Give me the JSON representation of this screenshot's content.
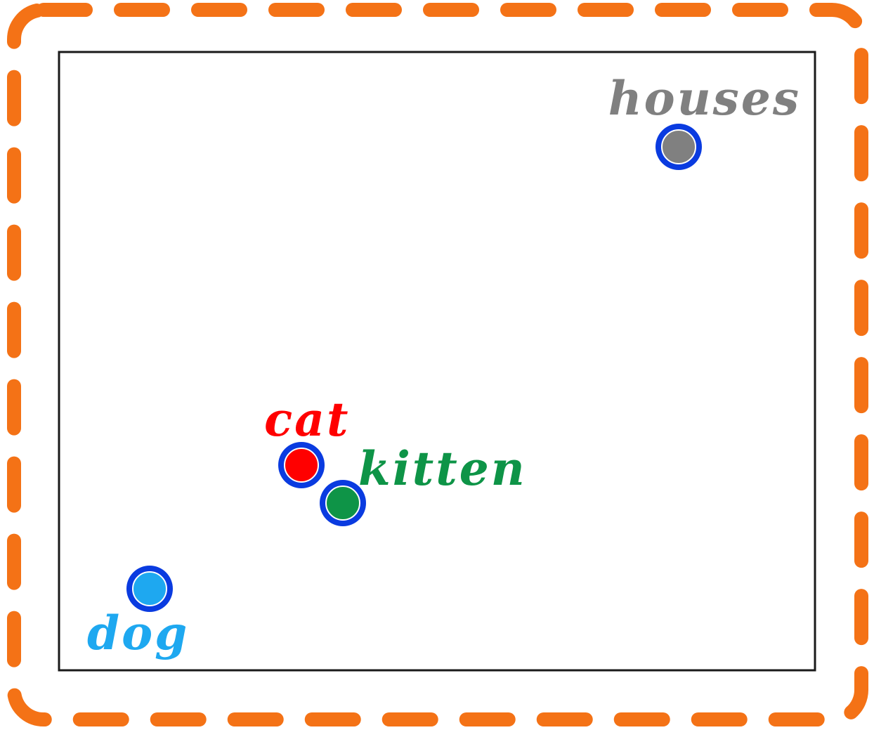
{
  "colors": {
    "outer_border": "#F47216",
    "inner_frame": "#1a1a1a",
    "point_ring": "#0A3BE0",
    "background": "#ffffff"
  },
  "points": [
    {
      "id": "houses",
      "label": "houses",
      "color": "#808080"
    },
    {
      "id": "cat",
      "label": "cat",
      "color": "#FF0000"
    },
    {
      "id": "kitten",
      "label": "kitten",
      "color": "#0E9447"
    },
    {
      "id": "dog",
      "label": "dog",
      "color": "#1EA8F0"
    }
  ]
}
